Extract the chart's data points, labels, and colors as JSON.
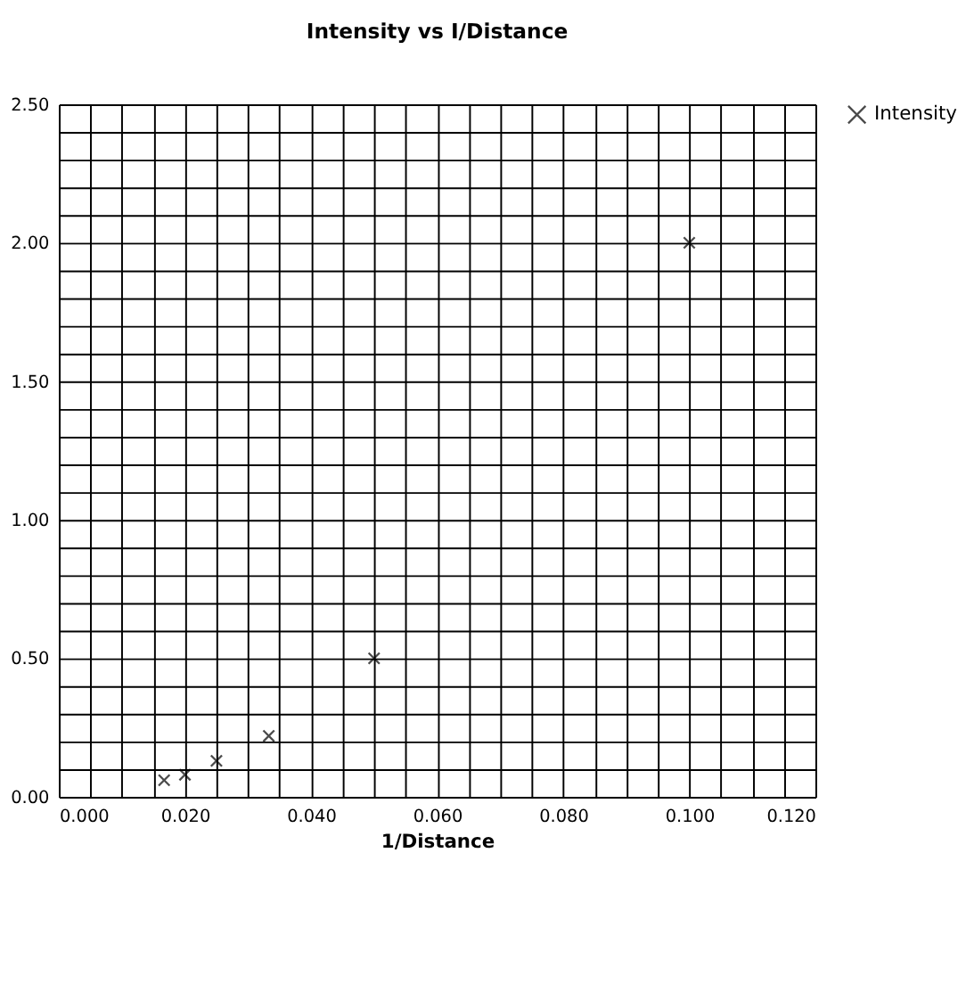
{
  "chart_data": {
    "type": "scatter",
    "title": "Intensity vs I/Distance",
    "xlabel": "1/Distance",
    "x": [
      0.0167,
      0.02,
      0.025,
      0.0333,
      0.05,
      0.1
    ],
    "series": [
      {
        "name": "Intensity",
        "color": "#000000",
        "values": [
          0.06,
          0.08,
          0.13,
          0.22,
          0.5,
          2.0
        ]
      }
    ],
    "xlim": [
      0,
      0.12
    ],
    "ylim": [
      0,
      2.5
    ],
    "xticks": [
      {
        "value": 0,
        "label": "0.000"
      },
      {
        "value": 0.005,
        "label": null
      },
      {
        "value": 0.01,
        "label": null
      },
      {
        "value": 0.015,
        "label": null
      },
      {
        "value": 0.02,
        "label": "0.020"
      },
      {
        "value": 0.025,
        "label": null
      },
      {
        "value": 0.03,
        "label": null
      },
      {
        "value": 0.035,
        "label": null
      },
      {
        "value": 0.04,
        "label": "0.040"
      },
      {
        "value": 0.045,
        "label": null
      },
      {
        "value": 0.05,
        "label": null
      },
      {
        "value": 0.055,
        "label": null
      },
      {
        "value": 0.06,
        "label": "0.060"
      },
      {
        "value": 0.065,
        "label": null
      },
      {
        "value": 0.07,
        "label": null
      },
      {
        "value": 0.075,
        "label": null
      },
      {
        "value": 0.08,
        "label": "0.080"
      },
      {
        "value": 0.085,
        "label": null
      },
      {
        "value": 0.09,
        "label": null
      },
      {
        "value": 0.095,
        "label": null
      },
      {
        "value": 0.1,
        "label": "0.100"
      },
      {
        "value": 0.105,
        "label": null
      },
      {
        "value": 0.11,
        "label": null
      },
      {
        "value": 0.115,
        "label": null
      },
      {
        "value": 0.12,
        "label": "0.120"
      }
    ],
    "yticks": [
      {
        "value": 0,
        "label": "0.00"
      },
      {
        "value": 0.1,
        "label": null
      },
      {
        "value": 0.2,
        "label": null
      },
      {
        "value": 0.3,
        "label": null
      },
      {
        "value": 0.4,
        "label": null
      },
      {
        "value": 0.5,
        "label": "0.50"
      },
      {
        "value": 0.6,
        "label": null
      },
      {
        "value": 0.7,
        "label": null
      },
      {
        "value": 0.8,
        "label": null
      },
      {
        "value": 0.9,
        "label": null
      },
      {
        "value": 1.0,
        "label": "1.00"
      },
      {
        "value": 1.1,
        "label": null
      },
      {
        "value": 1.2,
        "label": null
      },
      {
        "value": 1.3,
        "label": null
      },
      {
        "value": 1.4,
        "label": null
      },
      {
        "value": 1.5,
        "label": "1.50"
      },
      {
        "value": 1.6,
        "label": null
      },
      {
        "value": 1.7,
        "label": null
      },
      {
        "value": 1.8,
        "label": null
      },
      {
        "value": 1.9,
        "label": null
      },
      {
        "value": 2.0,
        "label": "2.00"
      },
      {
        "value": 2.1,
        "label": null
      },
      {
        "value": 2.2,
        "label": null
      },
      {
        "value": 2.3,
        "label": null
      },
      {
        "value": 2.4,
        "label": null
      },
      {
        "value": 2.5,
        "label": "2.50"
      }
    ],
    "grid": true,
    "legend": "right",
    "marker": "cross"
  }
}
